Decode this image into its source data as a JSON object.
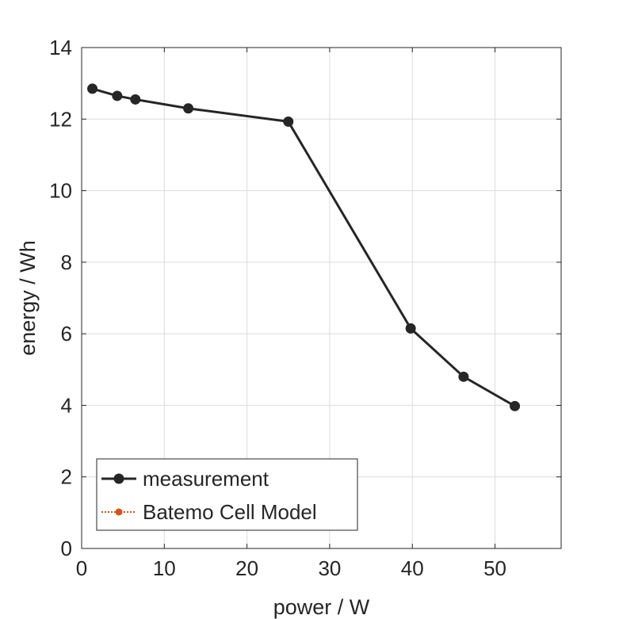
{
  "chart_data": {
    "type": "line",
    "xlabel": "power / W",
    "ylabel": "energy / Wh",
    "xlim": [
      0,
      58
    ],
    "ylim": [
      0,
      14
    ],
    "xticks": [
      0,
      10,
      20,
      30,
      40,
      50
    ],
    "yticks": [
      0,
      2,
      4,
      6,
      8,
      10,
      12,
      14
    ],
    "grid": true,
    "legend_position": "bottom-left",
    "series": [
      {
        "name": "measurement",
        "color": "#262626",
        "line_style": "solid",
        "marker": "circle",
        "x": [
          1.3,
          4.3,
          6.5,
          12.9,
          25.0,
          39.8,
          46.2,
          52.4
        ],
        "y": [
          12.85,
          12.65,
          12.55,
          12.3,
          11.93,
          6.15,
          4.8,
          3.98
        ]
      },
      {
        "name": "Batemo Cell Model",
        "color": "#D95319",
        "line_style": "dotted",
        "marker": "circle",
        "x": [],
        "y": []
      }
    ]
  }
}
